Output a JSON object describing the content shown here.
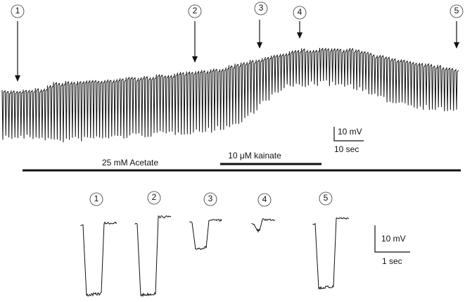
{
  "top_markers": [
    "1",
    "2",
    "3",
    "4",
    "5"
  ],
  "top_scale_bar": {
    "voltage": "10 mV",
    "time": "10 sec"
  },
  "treatments": {
    "acetate": "25 mM Acetate",
    "kainate": "10 μM kainate"
  },
  "bottom_markers": [
    "1",
    "2",
    "3",
    "4",
    "5"
  ],
  "bottom_scale_bar": {
    "voltage": "10 mV",
    "time": "1 sec"
  }
}
